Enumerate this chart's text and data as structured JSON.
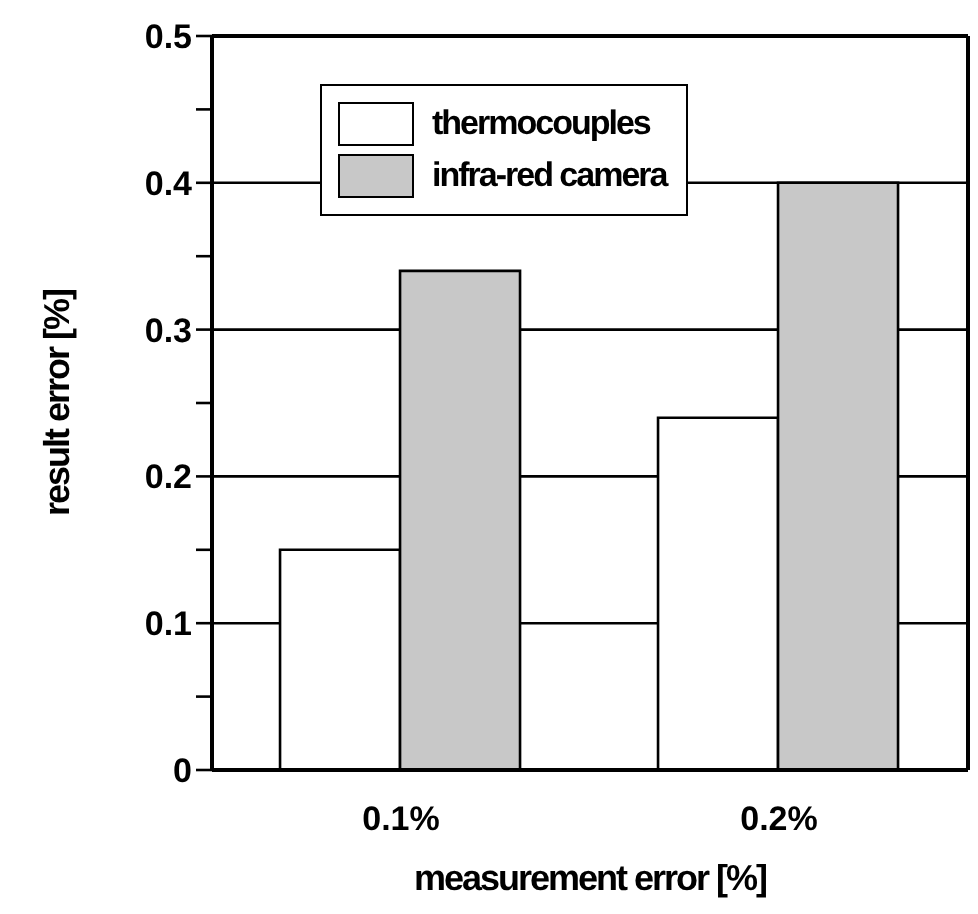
{
  "chart_data": {
    "type": "bar",
    "xlabel": "measurement error [%]",
    "ylabel": "result error [%]",
    "categories": [
      "0.1%",
      "0.2%"
    ],
    "series": [
      {
        "name": "thermocouples",
        "color": "#ffffff",
        "values": [
          0.15,
          0.24
        ]
      },
      {
        "name": "infra-red camera",
        "color": "#c8c8c8",
        "values": [
          0.34,
          0.4
        ]
      }
    ],
    "ylim": [
      0,
      0.5
    ],
    "yticks": [
      0,
      {
        "value": 0.05,
        "label": null
      },
      0.1,
      {
        "value": 0.15,
        "label": null
      },
      0.2,
      {
        "value": 0.25,
        "label": null
      },
      0.3,
      {
        "value": 0.35,
        "label": null
      },
      0.4,
      {
        "value": 0.45,
        "label": null
      },
      0.5
    ],
    "grid": "y",
    "legend": "top left"
  }
}
